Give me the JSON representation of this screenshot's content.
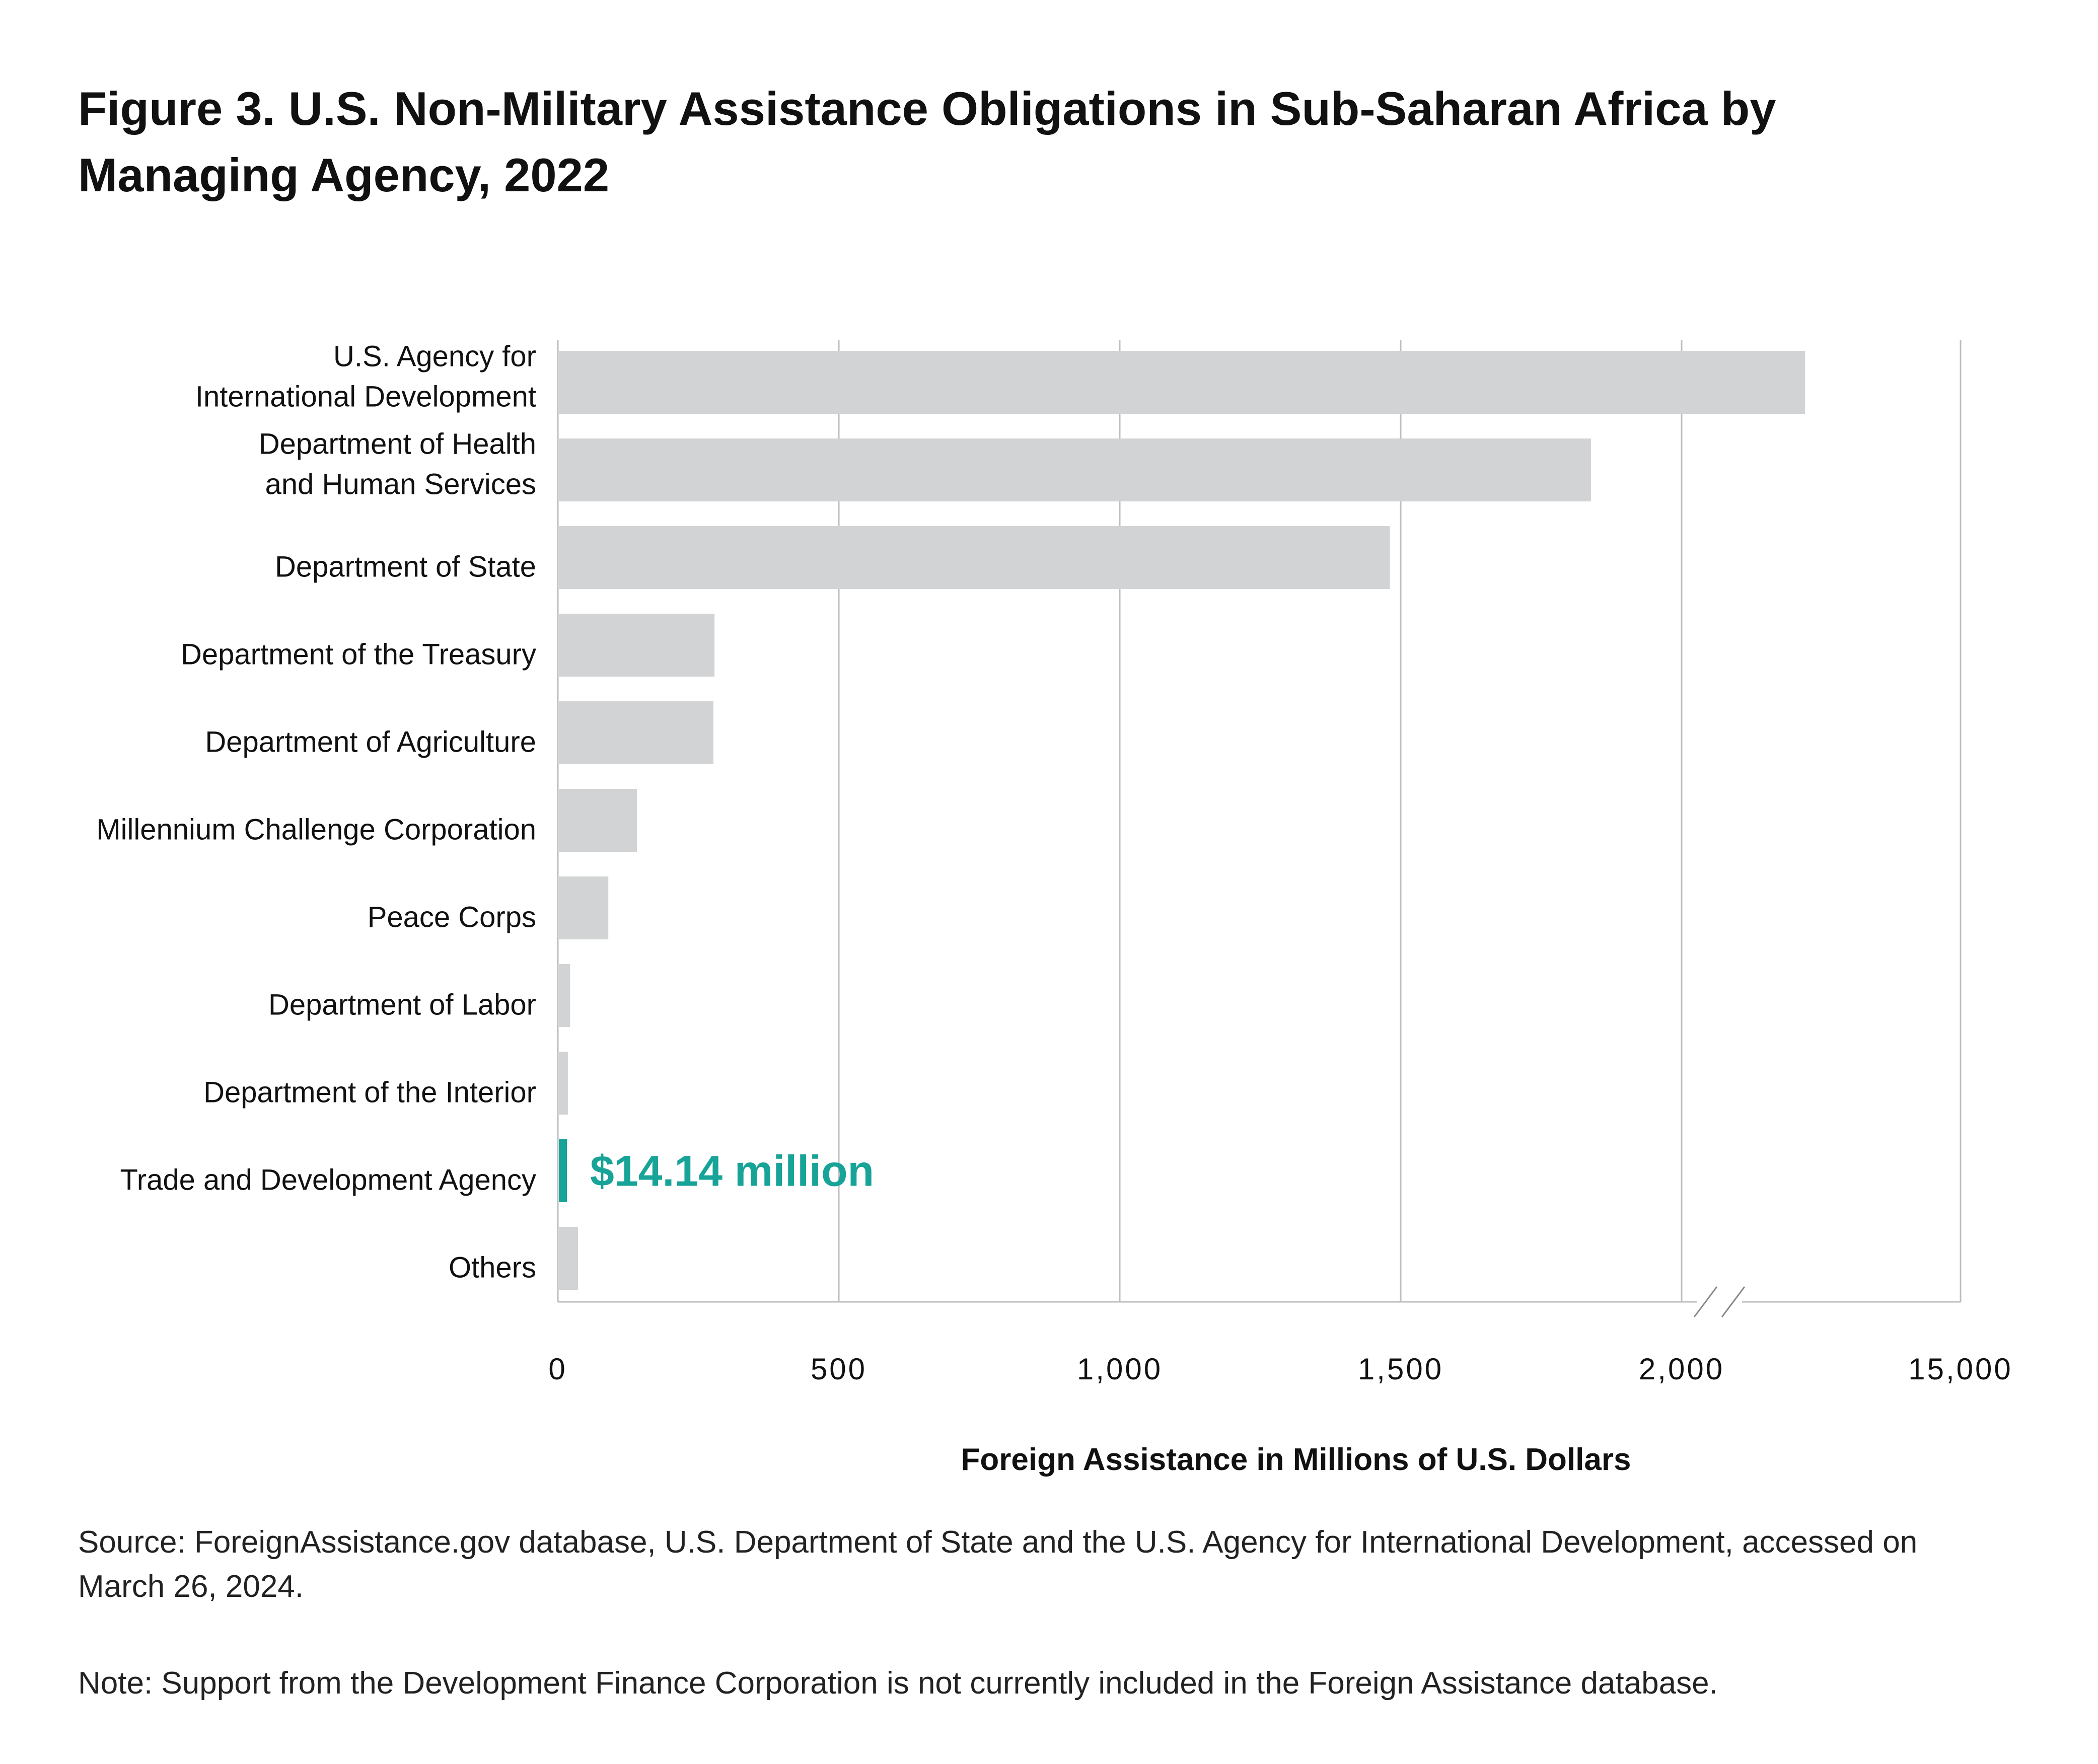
{
  "chart_data": {
    "type": "bar",
    "orientation": "horizontal",
    "title": "Figure 3. U.S. Non-Military Assistance Obligations in Sub-Saharan Africa by Managing Agency, 2022",
    "xlabel": "Foreign Assistance in Millions of U.S. Dollars",
    "ylabel": "",
    "categories": [
      [
        "U.S. Agency for",
        "International Development"
      ],
      [
        "Department of Health",
        "and Human Services"
      ],
      [
        "Department of State"
      ],
      [
        "Department of the Treasury"
      ],
      [
        "Department of Agriculture"
      ],
      [
        "Millennium Challenge Corporation"
      ],
      [
        "Peace Corps"
      ],
      [
        "Department of Labor"
      ],
      [
        "Department of the Interior"
      ],
      [
        "Trade and Development Agency"
      ],
      [
        "Others"
      ]
    ],
    "values": [
      2218,
      1837,
      1479,
      277,
      275,
      139,
      88,
      20,
      16,
      14.14,
      34
    ],
    "highlight_index": 9,
    "annotation": "$14.14 million",
    "xticks": [
      "0",
      "500",
      "1,000",
      "1,500",
      "2,000",
      "15,000"
    ],
    "xtick_values": [
      0,
      500,
      1000,
      1500,
      2000,
      15000
    ],
    "axis_break": "between 2,000 and 15,000",
    "grid": true,
    "colors": {
      "bar": "#d1d3d4",
      "highlight": "#17a398",
      "grid": "#bcbec0"
    }
  },
  "source": "Source: ForeignAssistance.gov database, U.S. Department of State and the U.S. Agency for International Development, accessed on March 26, 2024.",
  "note": "Note: Support from the Development Finance Corporation is not currently included in the Foreign Assistance database."
}
